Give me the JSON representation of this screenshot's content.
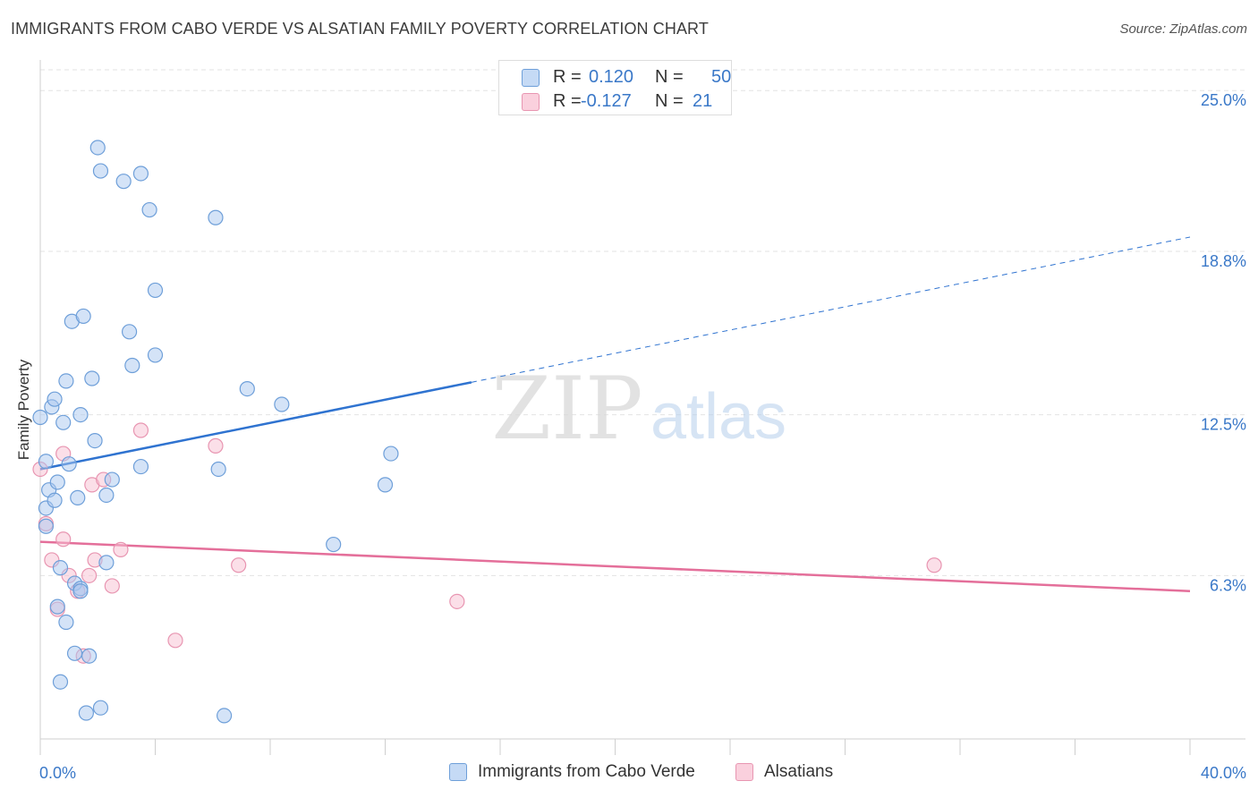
{
  "title": "IMMIGRANTS FROM CABO VERDE VS ALSATIAN FAMILY POVERTY CORRELATION CHART",
  "source": "Source: ZipAtlas.com",
  "watermark": {
    "zip": "ZIP",
    "atlas": "atlas"
  },
  "legend": {
    "rows": [
      {
        "r_label": "R =",
        "r_value": "0.120",
        "n_label": "N =",
        "n_value": "50",
        "color": "#a9c8ef"
      },
      {
        "r_label": "R =",
        "r_value": "-0.127",
        "n_label": "N =",
        "n_value": "21",
        "color": "#f7b8cb"
      }
    ]
  },
  "bottom_legend": [
    {
      "label": "Immigrants from Cabo Verde",
      "color": "#a9c8ef"
    },
    {
      "label": "Alsatians",
      "color": "#f7b8cb"
    }
  ],
  "colors": {
    "blue_fill": "#a9c8ef",
    "blue_stroke": "#6e9fd9",
    "blue_line": "#2f73d0",
    "pink_fill": "#f7c0d2",
    "pink_stroke": "#e895b1",
    "pink_line": "#e46f9a",
    "tick_label": "#3a78c8",
    "grid": "#e3e3e3"
  },
  "chart_data": {
    "type": "scatter",
    "title": "IMMIGRANTS FROM CABO VERDE VS ALSATIAN FAMILY POVERTY CORRELATION CHART",
    "xlabel": "",
    "ylabel": "Family Poverty",
    "xlim": [
      0,
      40
    ],
    "ylim": [
      0,
      25.8
    ],
    "x_tick_labels": [
      "0.0%",
      "40.0%"
    ],
    "y_ticks": [
      {
        "value": 6.3,
        "label": "6.3%"
      },
      {
        "value": 12.5,
        "label": "12.5%"
      },
      {
        "value": 18.8,
        "label": "18.8%"
      },
      {
        "value": 25.0,
        "label": "25.0%"
      }
    ],
    "grid": true,
    "series": [
      {
        "name": "Immigrants from Cabo Verde",
        "R": 0.12,
        "N": 50,
        "trend": {
          "x0": 0,
          "y0": 10.4,
          "x1": 15,
          "y1": 13.75,
          "dashed_to_x": 40,
          "dashed_to_y": 19.35
        },
        "points": [
          {
            "x": 0.0,
            "y": 12.4
          },
          {
            "x": 0.2,
            "y": 10.7
          },
          {
            "x": 0.2,
            "y": 8.9
          },
          {
            "x": 0.2,
            "y": 8.2
          },
          {
            "x": 0.3,
            "y": 9.6
          },
          {
            "x": 0.4,
            "y": 12.8
          },
          {
            "x": 0.5,
            "y": 9.2
          },
          {
            "x": 0.5,
            "y": 13.1
          },
          {
            "x": 0.6,
            "y": 5.1
          },
          {
            "x": 0.6,
            "y": 9.9
          },
          {
            "x": 0.7,
            "y": 6.6
          },
          {
            "x": 0.7,
            "y": 2.2
          },
          {
            "x": 0.8,
            "y": 12.2
          },
          {
            "x": 0.9,
            "y": 4.5
          },
          {
            "x": 0.9,
            "y": 13.8
          },
          {
            "x": 1.0,
            "y": 10.6
          },
          {
            "x": 1.1,
            "y": 16.1
          },
          {
            "x": 1.2,
            "y": 6.0
          },
          {
            "x": 1.2,
            "y": 3.3
          },
          {
            "x": 1.3,
            "y": 9.3
          },
          {
            "x": 1.4,
            "y": 5.8
          },
          {
            "x": 1.4,
            "y": 12.5
          },
          {
            "x": 1.5,
            "y": 16.3
          },
          {
            "x": 1.6,
            "y": 1.0
          },
          {
            "x": 1.7,
            "y": 3.2
          },
          {
            "x": 1.8,
            "y": 13.9
          },
          {
            "x": 1.9,
            "y": 11.5
          },
          {
            "x": 2.0,
            "y": 22.8
          },
          {
            "x": 2.1,
            "y": 21.9
          },
          {
            "x": 2.1,
            "y": 1.2
          },
          {
            "x": 2.3,
            "y": 6.8
          },
          {
            "x": 2.3,
            "y": 9.4
          },
          {
            "x": 2.5,
            "y": 10.0
          },
          {
            "x": 2.9,
            "y": 21.5
          },
          {
            "x": 3.1,
            "y": 15.7
          },
          {
            "x": 3.2,
            "y": 14.4
          },
          {
            "x": 3.5,
            "y": 10.5
          },
          {
            "x": 3.5,
            "y": 21.8
          },
          {
            "x": 3.8,
            "y": 20.4
          },
          {
            "x": 4.0,
            "y": 17.3
          },
          {
            "x": 4.0,
            "y": 14.8
          },
          {
            "x": 6.1,
            "y": 20.1
          },
          {
            "x": 6.2,
            "y": 10.4
          },
          {
            "x": 6.4,
            "y": 0.9
          },
          {
            "x": 7.2,
            "y": 13.5
          },
          {
            "x": 8.4,
            "y": 12.9
          },
          {
            "x": 10.2,
            "y": 7.5
          },
          {
            "x": 12.0,
            "y": 9.8
          },
          {
            "x": 12.2,
            "y": 11.0
          },
          {
            "x": 1.4,
            "y": 5.7
          }
        ]
      },
      {
        "name": "Alsatians",
        "R": -0.127,
        "N": 21,
        "trend": {
          "x0": 0,
          "y0": 7.6,
          "x1": 40,
          "y1": 5.7
        },
        "points": [
          {
            "x": 0.0,
            "y": 10.4
          },
          {
            "x": 0.2,
            "y": 8.3
          },
          {
            "x": 0.4,
            "y": 6.9
          },
          {
            "x": 0.6,
            "y": 5.0
          },
          {
            "x": 0.8,
            "y": 7.7
          },
          {
            "x": 0.8,
            "y": 11.0
          },
          {
            "x": 1.0,
            "y": 6.3
          },
          {
            "x": 1.3,
            "y": 5.7
          },
          {
            "x": 1.5,
            "y": 3.2
          },
          {
            "x": 1.7,
            "y": 6.3
          },
          {
            "x": 1.8,
            "y": 9.8
          },
          {
            "x": 1.9,
            "y": 6.9
          },
          {
            "x": 2.2,
            "y": 10.0
          },
          {
            "x": 2.5,
            "y": 5.9
          },
          {
            "x": 2.8,
            "y": 7.3
          },
          {
            "x": 3.5,
            "y": 11.9
          },
          {
            "x": 4.7,
            "y": 3.8
          },
          {
            "x": 6.1,
            "y": 11.3
          },
          {
            "x": 6.9,
            "y": 6.7
          },
          {
            "x": 14.5,
            "y": 5.3
          },
          {
            "x": 31.1,
            "y": 6.7
          }
        ]
      }
    ]
  }
}
